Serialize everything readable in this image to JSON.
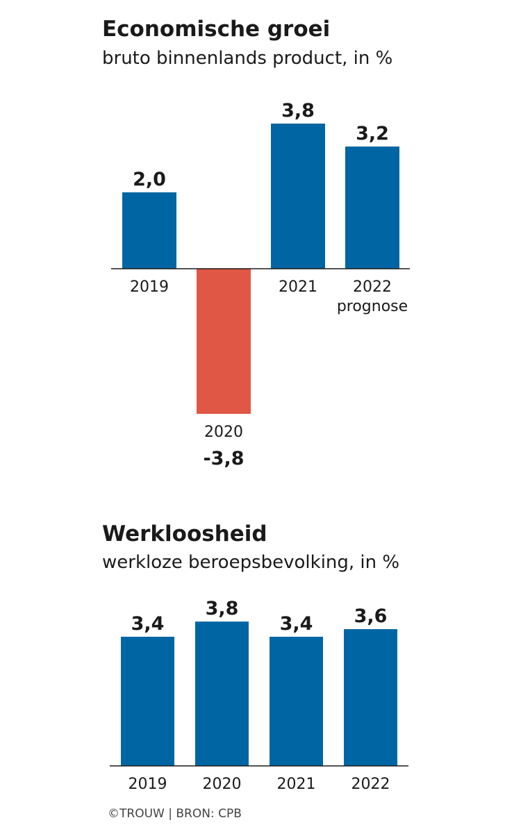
{
  "chart_data": [
    {
      "type": "bar",
      "title": "Economische groei",
      "subtitle": "bruto binnenlands product, in %",
      "categories": [
        "2019",
        "2020",
        "2021",
        "2022"
      ],
      "category_notes": [
        "",
        "",
        "",
        "prognose"
      ],
      "values": [
        2.0,
        -3.8,
        3.8,
        3.2
      ],
      "value_labels": [
        "2,0",
        "-3,8",
        "3,8",
        "3,2"
      ],
      "colors": {
        "positive": "#0066a3",
        "negative": "#e05745"
      },
      "grid": false
    },
    {
      "type": "bar",
      "title": "Werkloosheid",
      "subtitle": "werkloze beroepsbevolking, in %",
      "categories": [
        "2019",
        "2020",
        "2021",
        "2022"
      ],
      "values": [
        3.4,
        3.8,
        3.4,
        3.6
      ],
      "value_labels": [
        "3,4",
        "3,8",
        "3,4",
        "3,6"
      ],
      "colors": {
        "positive": "#0066a3"
      },
      "grid": false
    }
  ],
  "footer": "©TROUW | BRON: CPB"
}
